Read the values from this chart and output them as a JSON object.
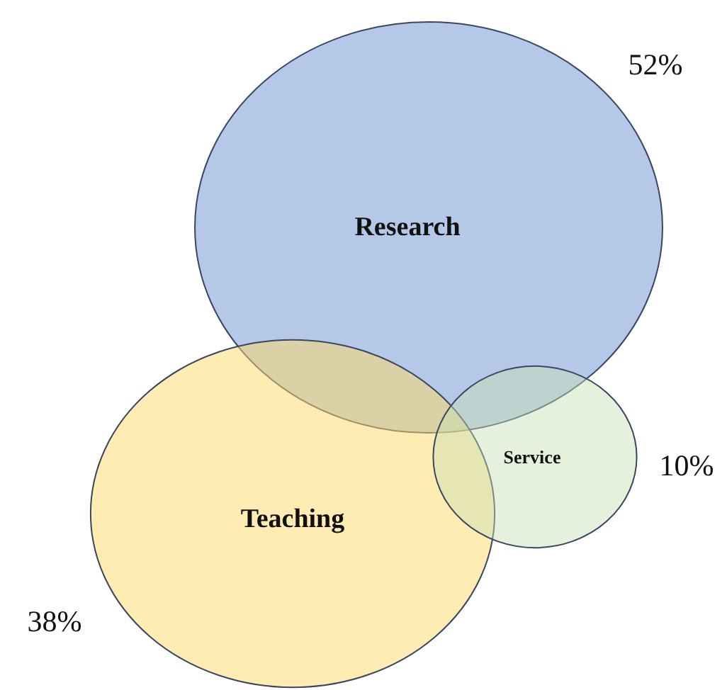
{
  "chart_data": {
    "type": "other",
    "categories": [
      "Research",
      "Teaching",
      "Service"
    ],
    "values": [
      52,
      38,
      10
    ],
    "value_labels": [
      "52%",
      "38%",
      "10%"
    ],
    "colors": [
      "#8faadc",
      "#ffd966",
      "#c5e0b4"
    ]
  }
}
